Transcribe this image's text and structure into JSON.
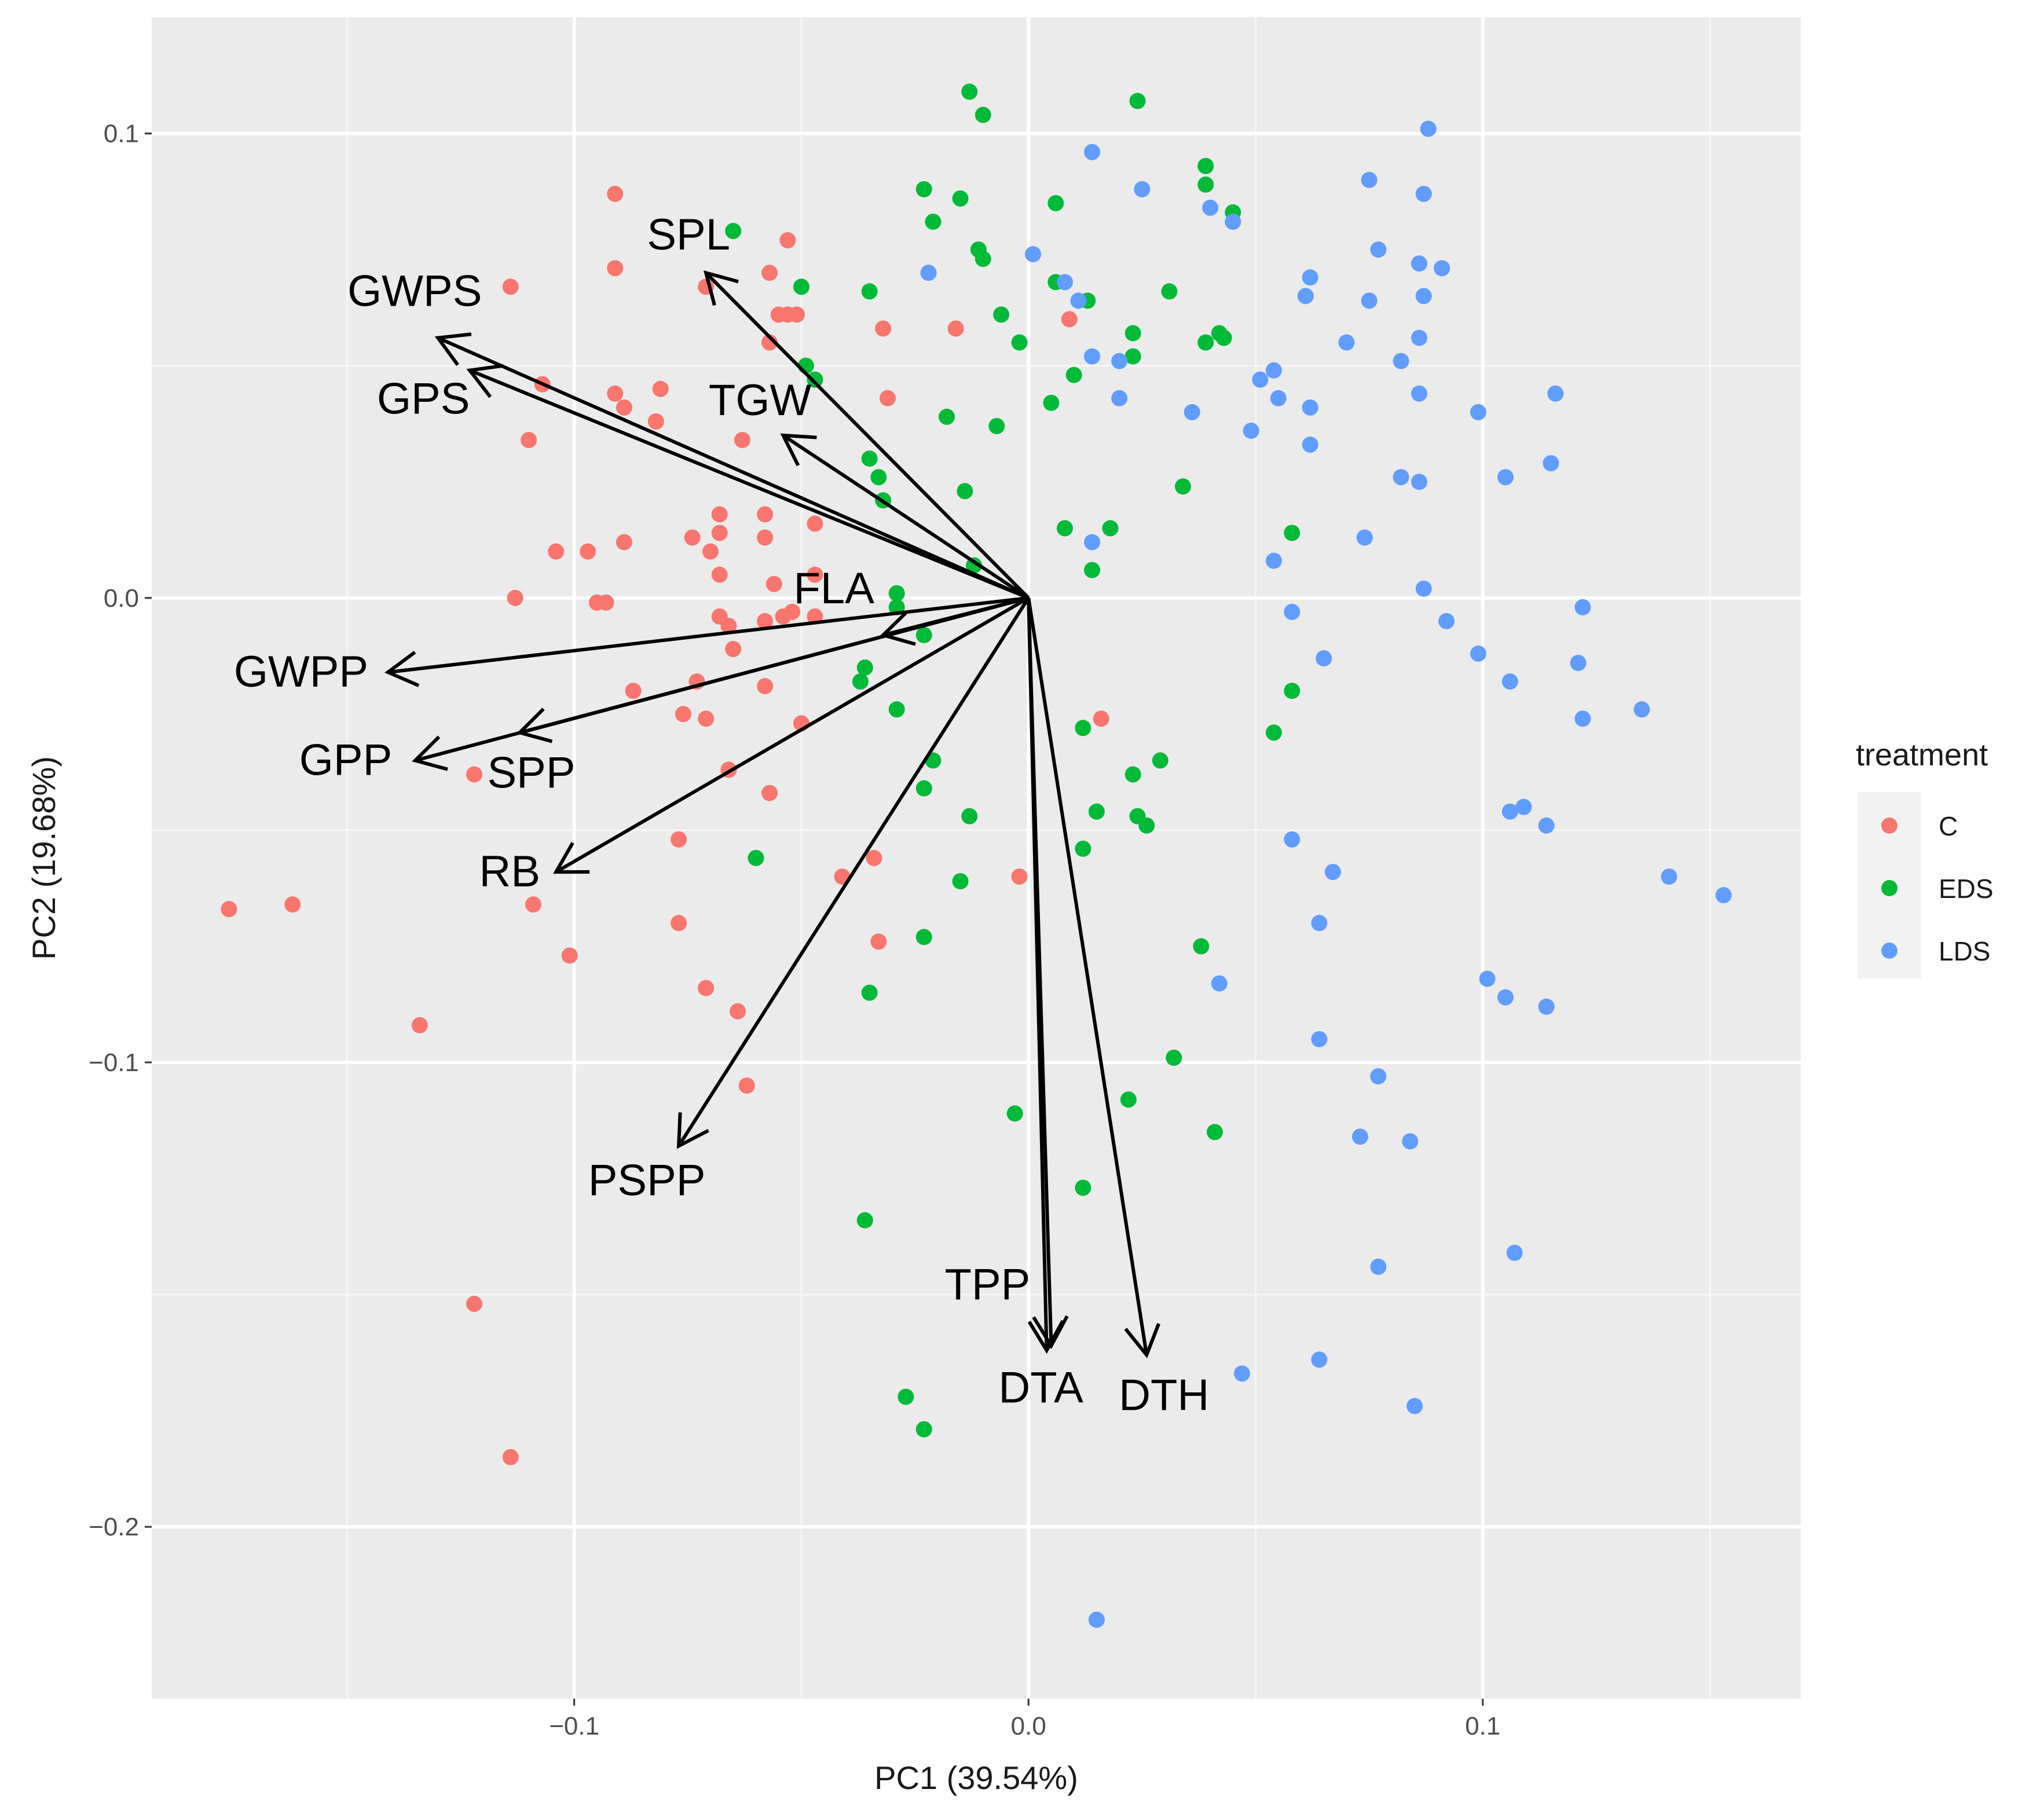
{
  "chart_data": {
    "type": "scatter",
    "subtype": "pca-biplot",
    "xlabel": "PC1 (39.54%)",
    "ylabel": "PC2 (19.68%)",
    "xlim": [
      -0.193,
      0.17
    ],
    "ylim": [
      -0.237,
      0.125
    ],
    "xticks": [
      -0.1,
      0.0,
      0.1
    ],
    "xtick_labels": [
      "−0.1",
      "0.0",
      "0.1"
    ],
    "yticks": [
      -0.2,
      -0.1,
      0.0,
      0.1
    ],
    "ytick_labels": [
      "−0.2",
      "−0.1",
      "0.0",
      "0.1"
    ],
    "grid": true,
    "legend": {
      "title": "treatment",
      "position": "right",
      "entries": [
        {
          "name": "C",
          "color": "#F8766D"
        },
        {
          "name": "EDS",
          "color": "#00BA38"
        },
        {
          "name": "LDS",
          "color": "#619CFF"
        }
      ]
    },
    "series": [
      {
        "name": "C",
        "color": "#F8766D",
        "points": [
          [
            -0.091,
            0.087
          ],
          [
            -0.114,
            0.067
          ],
          [
            -0.091,
            0.071
          ],
          [
            -0.071,
            0.067
          ],
          [
            -0.053,
            0.077
          ],
          [
            -0.057,
            0.07
          ],
          [
            -0.053,
            0.061
          ],
          [
            -0.055,
            0.061
          ],
          [
            -0.051,
            0.061
          ],
          [
            -0.057,
            0.055
          ],
          [
            -0.032,
            0.058
          ],
          [
            -0.016,
            0.058
          ],
          [
            0.009,
            0.06
          ],
          [
            -0.107,
            0.046
          ],
          [
            -0.091,
            0.044
          ],
          [
            -0.081,
            0.045
          ],
          [
            -0.089,
            0.041
          ],
          [
            -0.082,
            0.038
          ],
          [
            -0.031,
            0.043
          ],
          [
            -0.11,
            0.034
          ],
          [
            -0.063,
            0.034
          ],
          [
            -0.068,
            0.018
          ],
          [
            -0.058,
            0.018
          ],
          [
            -0.074,
            0.013
          ],
          [
            -0.068,
            0.014
          ],
          [
            -0.058,
            0.013
          ],
          [
            -0.047,
            0.016
          ],
          [
            -0.089,
            0.012
          ],
          [
            -0.104,
            0.01
          ],
          [
            -0.097,
            0.01
          ],
          [
            -0.07,
            0.01
          ],
          [
            -0.113,
            0.0
          ],
          [
            -0.095,
            -0.001
          ],
          [
            -0.093,
            -0.001
          ],
          [
            -0.068,
            0.005
          ],
          [
            -0.056,
            0.003
          ],
          [
            -0.047,
            0.005
          ],
          [
            -0.068,
            -0.004
          ],
          [
            -0.066,
            -0.006
          ],
          [
            -0.058,
            -0.005
          ],
          [
            -0.054,
            -0.004
          ],
          [
            -0.052,
            -0.003
          ],
          [
            -0.047,
            -0.004
          ],
          [
            -0.065,
            -0.011
          ],
          [
            -0.087,
            -0.02
          ],
          [
            -0.073,
            -0.018
          ],
          [
            -0.058,
            -0.019
          ],
          [
            -0.076,
            -0.025
          ],
          [
            -0.071,
            -0.026
          ],
          [
            -0.05,
            -0.027
          ],
          [
            -0.122,
            -0.038
          ],
          [
            -0.066,
            -0.037
          ],
          [
            -0.057,
            -0.042
          ],
          [
            -0.077,
            -0.052
          ],
          [
            -0.034,
            -0.056
          ],
          [
            -0.041,
            -0.06
          ],
          [
            -0.002,
            -0.06
          ],
          [
            0.016,
            -0.026
          ],
          [
            -0.176,
            -0.067
          ],
          [
            -0.162,
            -0.066
          ],
          [
            -0.109,
            -0.066
          ],
          [
            -0.077,
            -0.07
          ],
          [
            -0.101,
            -0.077
          ],
          [
            -0.033,
            -0.074
          ],
          [
            -0.071,
            -0.084
          ],
          [
            -0.064,
            -0.089
          ],
          [
            -0.134,
            -0.092
          ],
          [
            -0.062,
            -0.105
          ],
          [
            -0.122,
            -0.152
          ],
          [
            -0.114,
            -0.185
          ]
        ]
      },
      {
        "name": "EDS",
        "color": "#00BA38",
        "points": [
          [
            -0.013,
            0.109
          ],
          [
            -0.01,
            0.104
          ],
          [
            0.024,
            0.107
          ],
          [
            -0.065,
            0.079
          ],
          [
            -0.023,
            0.088
          ],
          [
            -0.015,
            0.086
          ],
          [
            -0.021,
            0.081
          ],
          [
            -0.011,
            0.075
          ],
          [
            -0.01,
            0.073
          ],
          [
            0.006,
            0.085
          ],
          [
            0.039,
            0.093
          ],
          [
            0.039,
            0.089
          ],
          [
            0.045,
            0.083
          ],
          [
            -0.05,
            0.067
          ],
          [
            -0.035,
            0.066
          ],
          [
            0.006,
            0.068
          ],
          [
            0.013,
            0.064
          ],
          [
            0.031,
            0.066
          ],
          [
            -0.006,
            0.061
          ],
          [
            -0.002,
            0.055
          ],
          [
            0.023,
            0.057
          ],
          [
            0.023,
            0.052
          ],
          [
            0.039,
            0.055
          ],
          [
            0.042,
            0.057
          ],
          [
            0.043,
            0.056
          ],
          [
            -0.049,
            0.05
          ],
          [
            -0.047,
            0.047
          ],
          [
            0.01,
            0.048
          ],
          [
            -0.018,
            0.039
          ],
          [
            -0.007,
            0.037
          ],
          [
            0.005,
            0.042
          ],
          [
            -0.035,
            0.03
          ],
          [
            -0.033,
            0.026
          ],
          [
            -0.014,
            0.023
          ],
          [
            0.034,
            0.024
          ],
          [
            -0.032,
            0.021
          ],
          [
            0.008,
            0.015
          ],
          [
            0.018,
            0.015
          ],
          [
            0.058,
            0.014
          ],
          [
            -0.012,
            0.007
          ],
          [
            0.014,
            0.006
          ],
          [
            -0.029,
            0.001
          ],
          [
            -0.029,
            -0.002
          ],
          [
            -0.023,
            -0.008
          ],
          [
            -0.036,
            -0.015
          ],
          [
            -0.037,
            -0.018
          ],
          [
            0.058,
            -0.02
          ],
          [
            -0.029,
            -0.024
          ],
          [
            0.012,
            -0.028
          ],
          [
            0.054,
            -0.029
          ],
          [
            -0.021,
            -0.035
          ],
          [
            0.029,
            -0.035
          ],
          [
            0.023,
            -0.038
          ],
          [
            -0.023,
            -0.041
          ],
          [
            0.015,
            -0.046
          ],
          [
            0.024,
            -0.047
          ],
          [
            -0.013,
            -0.047
          ],
          [
            0.026,
            -0.049
          ],
          [
            0.012,
            -0.054
          ],
          [
            -0.06,
            -0.056
          ],
          [
            -0.015,
            -0.061
          ],
          [
            -0.023,
            -0.073
          ],
          [
            0.038,
            -0.075
          ],
          [
            -0.035,
            -0.085
          ],
          [
            0.032,
            -0.099
          ],
          [
            -0.003,
            -0.111
          ],
          [
            0.022,
            -0.108
          ],
          [
            0.041,
            -0.115
          ],
          [
            0.012,
            -0.127
          ],
          [
            -0.036,
            -0.134
          ],
          [
            -0.027,
            -0.172
          ],
          [
            -0.023,
            -0.179
          ]
        ]
      },
      {
        "name": "LDS",
        "color": "#619CFF",
        "points": [
          [
            0.088,
            0.101
          ],
          [
            0.014,
            0.096
          ],
          [
            0.025,
            0.088
          ],
          [
            0.075,
            0.09
          ],
          [
            0.087,
            0.087
          ],
          [
            0.04,
            0.084
          ],
          [
            0.045,
            0.081
          ],
          [
            -0.022,
            0.07
          ],
          [
            0.001,
            0.074
          ],
          [
            0.008,
            0.068
          ],
          [
            0.011,
            0.064
          ],
          [
            0.062,
            0.069
          ],
          [
            0.061,
            0.065
          ],
          [
            0.077,
            0.075
          ],
          [
            0.086,
            0.072
          ],
          [
            0.091,
            0.071
          ],
          [
            0.075,
            0.064
          ],
          [
            0.087,
            0.065
          ],
          [
            0.07,
            0.055
          ],
          [
            0.086,
            0.056
          ],
          [
            0.082,
            0.051
          ],
          [
            0.014,
            0.052
          ],
          [
            0.02,
            0.051
          ],
          [
            0.051,
            0.047
          ],
          [
            0.054,
            0.049
          ],
          [
            0.055,
            0.043
          ],
          [
            0.062,
            0.041
          ],
          [
            0.036,
            0.04
          ],
          [
            0.049,
            0.036
          ],
          [
            0.086,
            0.044
          ],
          [
            0.116,
            0.044
          ],
          [
            0.099,
            0.04
          ],
          [
            0.062,
            0.033
          ],
          [
            0.082,
            0.026
          ],
          [
            0.086,
            0.025
          ],
          [
            0.105,
            0.026
          ],
          [
            0.115,
            0.029
          ],
          [
            0.02,
            0.043
          ],
          [
            0.014,
            0.012
          ],
          [
            0.074,
            0.013
          ],
          [
            0.054,
            0.008
          ],
          [
            0.058,
            -0.003
          ],
          [
            0.087,
            0.002
          ],
          [
            0.092,
            -0.005
          ],
          [
            0.122,
            -0.002
          ],
          [
            0.065,
            -0.013
          ],
          [
            0.099,
            -0.012
          ],
          [
            0.106,
            -0.018
          ],
          [
            0.121,
            -0.014
          ],
          [
            0.122,
            -0.026
          ],
          [
            0.135,
            -0.024
          ],
          [
            0.106,
            -0.046
          ],
          [
            0.109,
            -0.045
          ],
          [
            0.114,
            -0.049
          ],
          [
            0.058,
            -0.052
          ],
          [
            0.067,
            -0.059
          ],
          [
            0.141,
            -0.06
          ],
          [
            0.153,
            -0.064
          ],
          [
            0.064,
            -0.07
          ],
          [
            0.042,
            -0.083
          ],
          [
            0.101,
            -0.082
          ],
          [
            0.105,
            -0.086
          ],
          [
            0.114,
            -0.088
          ],
          [
            0.064,
            -0.095
          ],
          [
            0.077,
            -0.103
          ],
          [
            0.073,
            -0.116
          ],
          [
            0.084,
            -0.117
          ],
          [
            0.077,
            -0.144
          ],
          [
            0.107,
            -0.141
          ],
          [
            0.047,
            -0.167
          ],
          [
            0.064,
            -0.164
          ],
          [
            0.085,
            -0.174
          ],
          [
            0.015,
            -0.22
          ]
        ]
      }
    ],
    "loadings": [
      {
        "name": "SPL",
        "x": -0.071,
        "y": 0.07
      },
      {
        "name": "GWPS",
        "x": -0.13,
        "y": 0.056
      },
      {
        "name": "GPS",
        "x": -0.123,
        "y": 0.049
      },
      {
        "name": "TGW",
        "x": -0.054,
        "y": 0.035
      },
      {
        "name": "FLA",
        "x": -0.032,
        "y": -0.008
      },
      {
        "name": "GWPP",
        "x": -0.141,
        "y": -0.016
      },
      {
        "name": "SPP",
        "x": -0.112,
        "y": -0.029
      },
      {
        "name": "GPP",
        "x": -0.135,
        "y": -0.035
      },
      {
        "name": "RB",
        "x": -0.104,
        "y": -0.059
      },
      {
        "name": "PSPP",
        "x": -0.077,
        "y": -0.118
      },
      {
        "name": "TPP",
        "x": 0.005,
        "y": -0.161
      },
      {
        "name": "DTA",
        "x": 0.004,
        "y": -0.162
      },
      {
        "name": "DTH",
        "x": 0.026,
        "y": -0.163
      }
    ]
  }
}
